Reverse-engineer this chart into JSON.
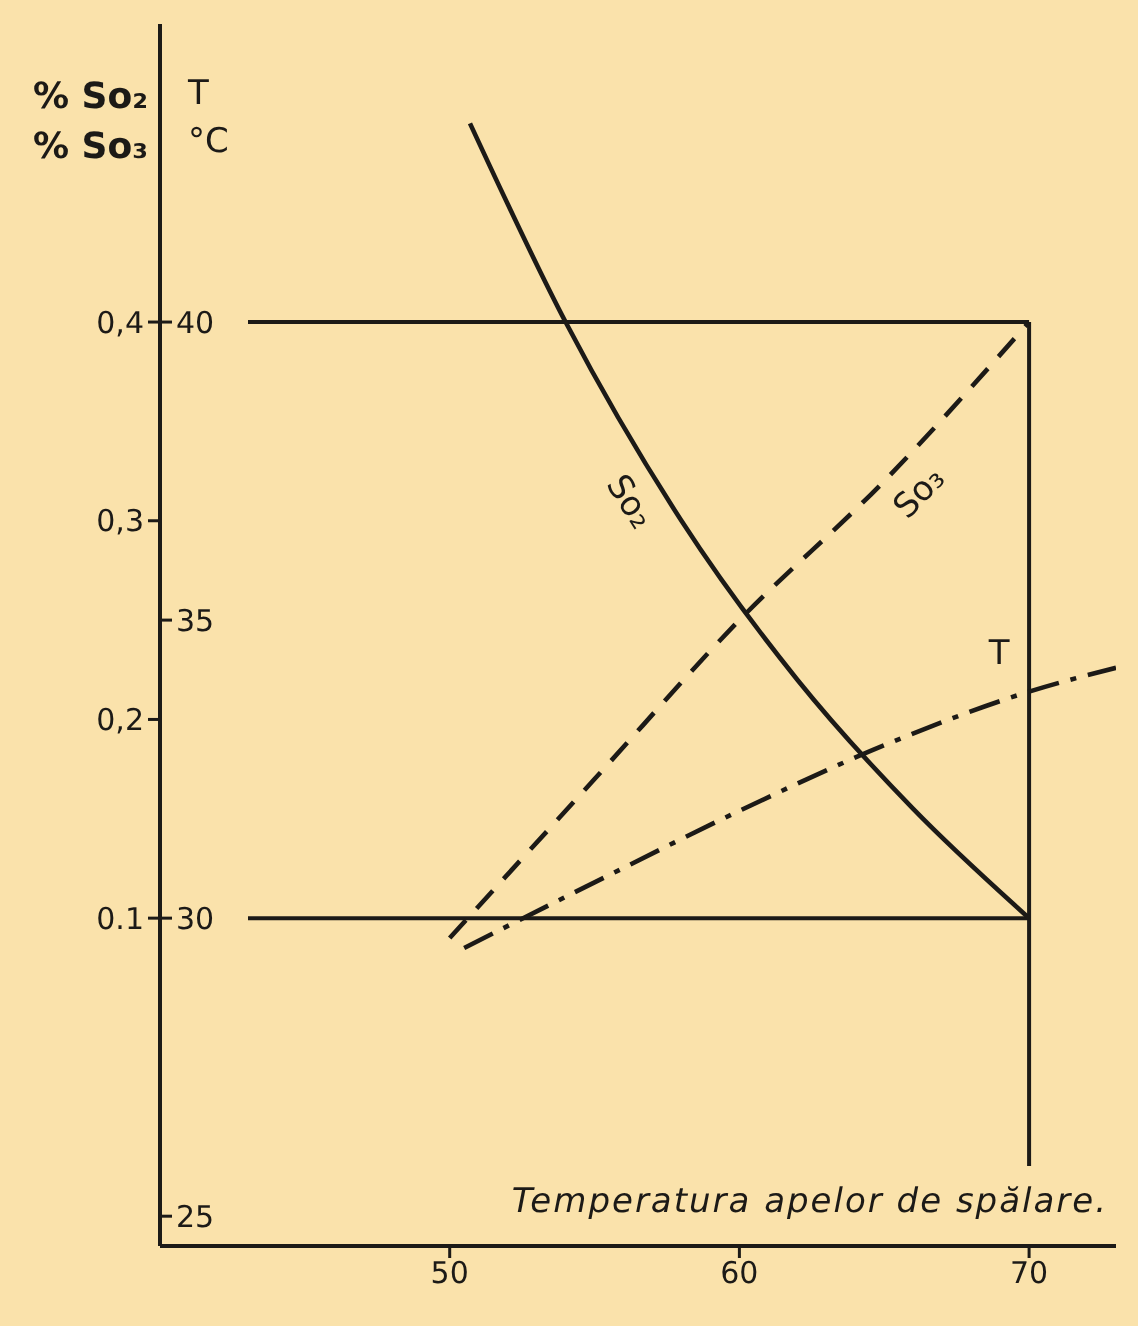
{
  "chart_data": {
    "type": "line",
    "xlabel": "Temperatura apelor de spălare.",
    "ylabel": "% So₂\n% So₃",
    "y2label": "T\n°C",
    "xlim": [
      40,
      73
    ],
    "xticks": [
      50,
      60,
      70
    ],
    "ylim": [
      -0.065,
      0.55
    ],
    "yticks": [
      0.1,
      {
        "value": 0.2,
        "label": "0,2"
      },
      {
        "value": 0.3,
        "label": "0,3"
      },
      {
        "value": 0.4,
        "label": "0,4"
      }
    ],
    "y2lim": [
      24.5,
      45
    ],
    "y2ticks": [
      25,
      30,
      35,
      40
    ],
    "ref_lines": [
      {
        "axis": "y",
        "value": 0.4,
        "color": "#1c1a17"
      },
      {
        "axis": "y",
        "value": 0.1,
        "color": "#1c1a17"
      },
      {
        "axis": "x",
        "value": 70,
        "color": "#1c1a17"
      }
    ],
    "series": [
      {
        "name": "So₂",
        "color": "#1c1a17",
        "line_style": "solid",
        "x": [
          50.7,
          54,
          58,
          62,
          66,
          70
        ],
        "values": [
          0.5,
          0.4,
          0.3,
          0.22,
          0.155,
          0.1
        ]
      },
      {
        "name": "So₃",
        "color": "#1c1a17",
        "line_style": "dashed",
        "x": [
          50,
          55,
          60,
          65,
          70
        ],
        "values": [
          0.09,
          0.17,
          0.25,
          0.32,
          0.4
        ]
      },
      {
        "name": "T",
        "color": "#1c1a17",
        "line_style": "dashdot",
        "axis": "y2",
        "x": [
          50.5,
          55,
          60,
          65,
          70,
          73
        ],
        "values": [
          29.5,
          30.6,
          31.8,
          32.9,
          33.8,
          34.2
        ]
      }
    ]
  }
}
